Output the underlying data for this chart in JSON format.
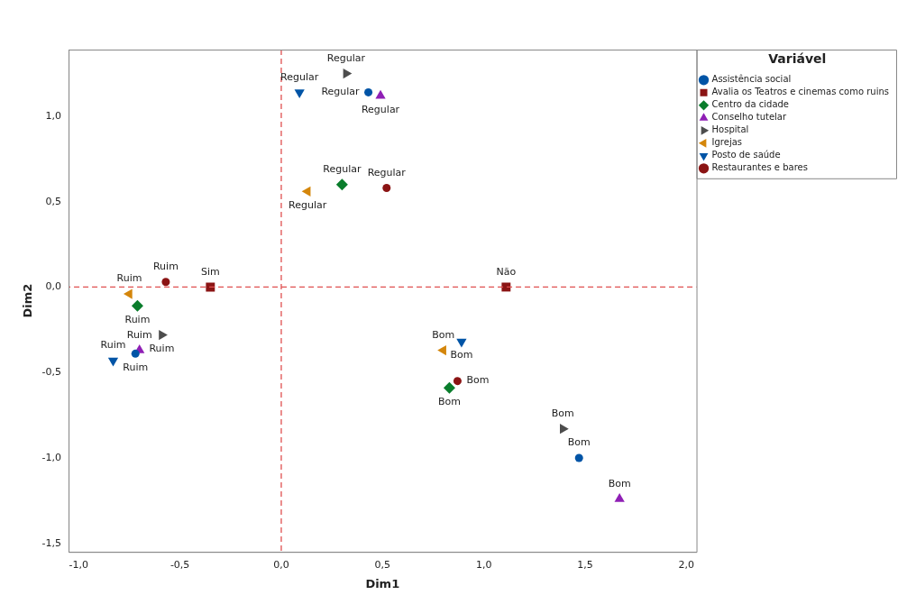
{
  "chart_data": {
    "type": "scatter",
    "xlabel": "Dim1",
    "ylabel": "Dim2",
    "legend_title": "Variável",
    "legend": "top right",
    "grid": false,
    "xlim": [
      -1.05,
      2.05
    ],
    "ylim": [
      -1.55,
      1.39
    ],
    "xticks": [
      {
        "value": -1,
        "label": "-1,0"
      },
      {
        "value": -0.5,
        "label": "-0,5"
      },
      {
        "value": 0,
        "label": "0,0"
      },
      {
        "value": 0.5,
        "label": "0,5"
      },
      {
        "value": 1,
        "label": "1,0"
      },
      {
        "value": 1.5,
        "label": "1,5"
      },
      {
        "value": 2,
        "label": "2,0"
      }
    ],
    "yticks": [
      {
        "value": -1.5,
        "label": "-1,5"
      },
      {
        "value": -1,
        "label": "-1,0"
      },
      {
        "value": -0.5,
        "label": "-0,5"
      },
      {
        "value": 0,
        "label": "0,0"
      },
      {
        "value": 0.5,
        "label": "0,5"
      },
      {
        "value": 1,
        "label": "1,0"
      }
    ],
    "ref_lines": [
      {
        "axis": "x",
        "value": 0,
        "color": "#e05050",
        "line_style": "dashed"
      },
      {
        "axis": "y",
        "value": 0,
        "color": "#e05050",
        "line_style": "dashed"
      }
    ],
    "series": [
      {
        "name": "Assistência social",
        "color": "#0054a6",
        "marker": "circle",
        "x": [
          0.43,
          -0.72,
          1.47
        ],
        "values": [
          1.14,
          -0.39,
          -1.0
        ]
      },
      {
        "name": "Avalia os Teatros e cinemas como ruins",
        "color": "#8b1414",
        "marker": "square",
        "x": [
          -0.35,
          1.11
        ],
        "values": [
          0,
          0
        ]
      },
      {
        "name": "Centro da cidade",
        "color": "#0a7d2c",
        "marker": "diamond",
        "x": [
          0.3,
          -0.71,
          0.83
        ],
        "values": [
          0.6,
          -0.11,
          -0.59
        ]
      },
      {
        "name": "Conselho tutelar",
        "color": "#8f1fb5",
        "marker": "triangle",
        "x": [
          0.49,
          -0.7,
          1.67
        ],
        "values": [
          1.12,
          -0.37,
          -1.24
        ]
      },
      {
        "name": "Hospital",
        "color": "#4d4d4d",
        "marker": "triangle-right",
        "x": [
          0.32,
          -0.59,
          1.39
        ],
        "values": [
          1.25,
          -0.28,
          -0.83
        ]
      },
      {
        "name": "Igrejas",
        "color": "#d4860b",
        "marker": "triangle-left",
        "x": [
          0.13,
          -0.75,
          0.8
        ],
        "values": [
          0.56,
          -0.04,
          -0.37
        ]
      },
      {
        "name": "Posto de saúde",
        "color": "#0054a6",
        "marker": "triangle-down",
        "x": [
          0.09,
          -0.83,
          0.89
        ],
        "values": [
          1.14,
          -0.43,
          -0.32
        ]
      },
      {
        "name": "Restaurantes e bares",
        "color": "#8b1414",
        "marker": "circle",
        "x": [
          0.52,
          -0.57,
          0.87
        ],
        "values": [
          0.58,
          0.03,
          -0.55
        ]
      }
    ],
    "annotations": [
      {
        "text": "Regular",
        "x": 0.43,
        "y": 1.14
      },
      {
        "text": "Ruim",
        "x": -0.72,
        "y": -0.39
      },
      {
        "text": "Bom",
        "x": 1.47,
        "y": -1.0
      },
      {
        "text": "Sim",
        "x": -0.35,
        "y": 0
      },
      {
        "text": "Não",
        "x": 1.11,
        "y": 0
      },
      {
        "text": "Regular",
        "x": 0.3,
        "y": 0.6
      },
      {
        "text": "Ruim",
        "x": -0.71,
        "y": -0.11
      },
      {
        "text": "Bom",
        "x": 0.83,
        "y": -0.59
      },
      {
        "text": "Regular",
        "x": 0.49,
        "y": 1.12
      },
      {
        "text": "Ruim",
        "x": -0.7,
        "y": -0.37
      },
      {
        "text": "Bom",
        "x": 1.67,
        "y": -1.24
      },
      {
        "text": "Regular",
        "x": 0.32,
        "y": 1.25
      },
      {
        "text": "Ruim",
        "x": -0.59,
        "y": -0.28
      },
      {
        "text": "Bom",
        "x": 1.39,
        "y": -0.83
      },
      {
        "text": "Regular",
        "x": 0.13,
        "y": 0.56
      },
      {
        "text": "Ruim",
        "x": -0.75,
        "y": -0.04
      },
      {
        "text": "Bom",
        "x": 0.8,
        "y": -0.37
      },
      {
        "text": "Regular",
        "x": 0.09,
        "y": 1.14
      },
      {
        "text": "Ruim",
        "x": -0.83,
        "y": -0.43
      },
      {
        "text": "Bom",
        "x": 0.89,
        "y": -0.32
      },
      {
        "text": "Regular",
        "x": 0.52,
        "y": 0.58
      },
      {
        "text": "Ruim",
        "x": -0.57,
        "y": 0.03
      },
      {
        "text": "Bom",
        "x": 0.87,
        "y": -0.55
      }
    ]
  }
}
